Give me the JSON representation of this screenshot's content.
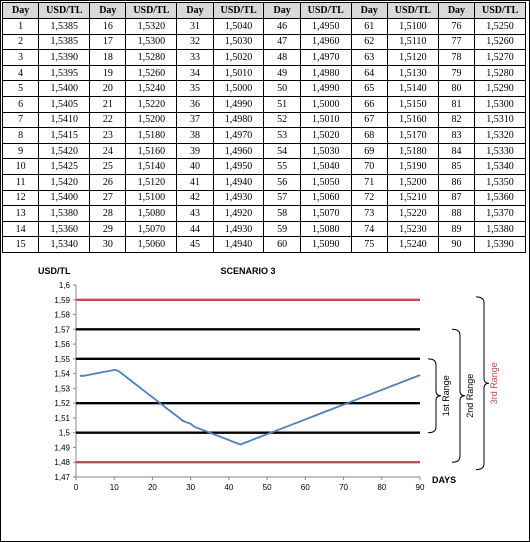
{
  "table": {
    "headers": [
      "Day",
      "USD/TL",
      "Day",
      "USD/TL",
      "Day",
      "USD/TL",
      "Day",
      "USD/TL",
      "Day",
      "USD/TL",
      "Day",
      "USD/TL"
    ],
    "rows": [
      [
        "1",
        "1,5385",
        "16",
        "1,5320",
        "31",
        "1,5040",
        "46",
        "1,4950",
        "61",
        "1,5100",
        "76",
        "1,5250"
      ],
      [
        "2",
        "1,5385",
        "17",
        "1,5300",
        "32",
        "1,5030",
        "47",
        "1,4960",
        "62",
        "1,5110",
        "77",
        "1,5260"
      ],
      [
        "3",
        "1,5390",
        "18",
        "1,5280",
        "33",
        "1,5020",
        "48",
        "1,4970",
        "63",
        "1,5120",
        "78",
        "1,5270"
      ],
      [
        "4",
        "1,5395",
        "19",
        "1,5260",
        "34",
        "1,5010",
        "49",
        "1,4980",
        "64",
        "1,5130",
        "79",
        "1,5280"
      ],
      [
        "5",
        "1,5400",
        "20",
        "1,5240",
        "35",
        "1,5000",
        "50",
        "1,4990",
        "65",
        "1,5140",
        "80",
        "1,5290"
      ],
      [
        "6",
        "1,5405",
        "21",
        "1,5220",
        "36",
        "1,4990",
        "51",
        "1,5000",
        "66",
        "1,5150",
        "81",
        "1,5300"
      ],
      [
        "7",
        "1,5410",
        "22",
        "1,5200",
        "37",
        "1,4980",
        "52",
        "1,5010",
        "67",
        "1,5160",
        "82",
        "1,5310"
      ],
      [
        "8",
        "1,5415",
        "23",
        "1,5180",
        "38",
        "1,4970",
        "53",
        "1,5020",
        "68",
        "1,5170",
        "83",
        "1,5320"
      ],
      [
        "9",
        "1,5420",
        "24",
        "1,5160",
        "39",
        "1,4960",
        "54",
        "1,5030",
        "69",
        "1,5180",
        "84",
        "1,5330"
      ],
      [
        "10",
        "1,5425",
        "25",
        "1,5140",
        "40",
        "1,4950",
        "55",
        "1,5040",
        "70",
        "1,5190",
        "85",
        "1,5340"
      ],
      [
        "11",
        "1,5420",
        "26",
        "1,5120",
        "41",
        "1,4940",
        "56",
        "1,5050",
        "71",
        "1,5200",
        "86",
        "1,5350"
      ],
      [
        "12",
        "1,5400",
        "27",
        "1,5100",
        "42",
        "1,4930",
        "57",
        "1,5060",
        "72",
        "1,5210",
        "87",
        "1,5360"
      ],
      [
        "13",
        "1,5380",
        "28",
        "1,5080",
        "43",
        "1,4920",
        "58",
        "1,5070",
        "73",
        "1,5220",
        "88",
        "1,5370"
      ],
      [
        "14",
        "1,5360",
        "29",
        "1,5070",
        "44",
        "1,4930",
        "59",
        "1,5080",
        "74",
        "1,5230",
        "89",
        "1,5380"
      ],
      [
        "15",
        "1,5340",
        "30",
        "1,5060",
        "45",
        "1,4940",
        "60",
        "1,5090",
        "75",
        "1,5240",
        "90",
        "1,5390"
      ]
    ]
  },
  "chart_data": {
    "type": "line",
    "title": "SCENARIO 3",
    "ylabel": "USD/TL",
    "xlabel": "DAYS",
    "xlim": [
      0,
      90
    ],
    "ylim": [
      1.47,
      1.6
    ],
    "x_ticks": [
      "0",
      "10",
      "20",
      "30",
      "40",
      "50",
      "60",
      "70",
      "80",
      "90"
    ],
    "y_ticks": [
      "1,47",
      "1,48",
      "1,49",
      "1,5",
      "1,51",
      "1,52",
      "1,53",
      "1,54",
      "1,55",
      "1,56",
      "1,57",
      "1,58",
      "1,59",
      "1,6"
    ],
    "grid": false,
    "series": [
      {
        "color": "#4f81bd",
        "x": [
          1,
          2,
          3,
          4,
          5,
          6,
          7,
          8,
          9,
          10,
          11,
          12,
          13,
          14,
          15,
          16,
          17,
          18,
          19,
          20,
          21,
          22,
          23,
          24,
          25,
          26,
          27,
          28,
          29,
          30,
          31,
          32,
          33,
          34,
          35,
          36,
          37,
          38,
          39,
          40,
          41,
          42,
          43,
          44,
          45,
          46,
          47,
          48,
          49,
          50,
          51,
          52,
          53,
          54,
          55,
          56,
          57,
          58,
          59,
          60,
          61,
          62,
          63,
          64,
          65,
          66,
          67,
          68,
          69,
          70,
          71,
          72,
          73,
          74,
          75,
          76,
          77,
          78,
          79,
          80,
          81,
          82,
          83,
          84,
          85,
          86,
          87,
          88,
          89,
          90
        ],
        "y": [
          1.5385,
          1.5385,
          1.539,
          1.5395,
          1.54,
          1.5405,
          1.541,
          1.5415,
          1.542,
          1.5425,
          1.542,
          1.54,
          1.538,
          1.536,
          1.534,
          1.532,
          1.53,
          1.528,
          1.526,
          1.524,
          1.522,
          1.52,
          1.518,
          1.516,
          1.514,
          1.512,
          1.51,
          1.508,
          1.507,
          1.506,
          1.504,
          1.503,
          1.502,
          1.501,
          1.5,
          1.499,
          1.498,
          1.497,
          1.496,
          1.495,
          1.494,
          1.493,
          1.492,
          1.493,
          1.494,
          1.495,
          1.496,
          1.497,
          1.498,
          1.499,
          1.5,
          1.501,
          1.502,
          1.503,
          1.504,
          1.505,
          1.506,
          1.507,
          1.508,
          1.509,
          1.51,
          1.511,
          1.512,
          1.513,
          1.514,
          1.515,
          1.516,
          1.517,
          1.518,
          1.519,
          1.52,
          1.521,
          1.522,
          1.523,
          1.524,
          1.525,
          1.526,
          1.527,
          1.528,
          1.529,
          1.53,
          1.531,
          1.532,
          1.533,
          1.534,
          1.535,
          1.536,
          1.537,
          1.538,
          1.539
        ]
      }
    ],
    "reference_lines": [
      {
        "y": 1.59,
        "color": "#c0504d"
      },
      {
        "y": 1.57,
        "color": "#000000"
      },
      {
        "y": 1.55,
        "color": "#000000"
      },
      {
        "y": 1.52,
        "color": "#000000"
      },
      {
        "y": 1.5,
        "color": "#000000"
      },
      {
        "y": 1.48,
        "color": "#c0504d"
      }
    ],
    "ranges": [
      {
        "label": "1st Range",
        "from": 1.5,
        "to": 1.55,
        "color": "#000000"
      },
      {
        "label": "2nd Range",
        "from": 1.48,
        "to": 1.57,
        "color": "#000000"
      },
      {
        "label": "3rd Range",
        "from": 1.475,
        "to": 1.592,
        "color": "#c0504d"
      }
    ]
  }
}
